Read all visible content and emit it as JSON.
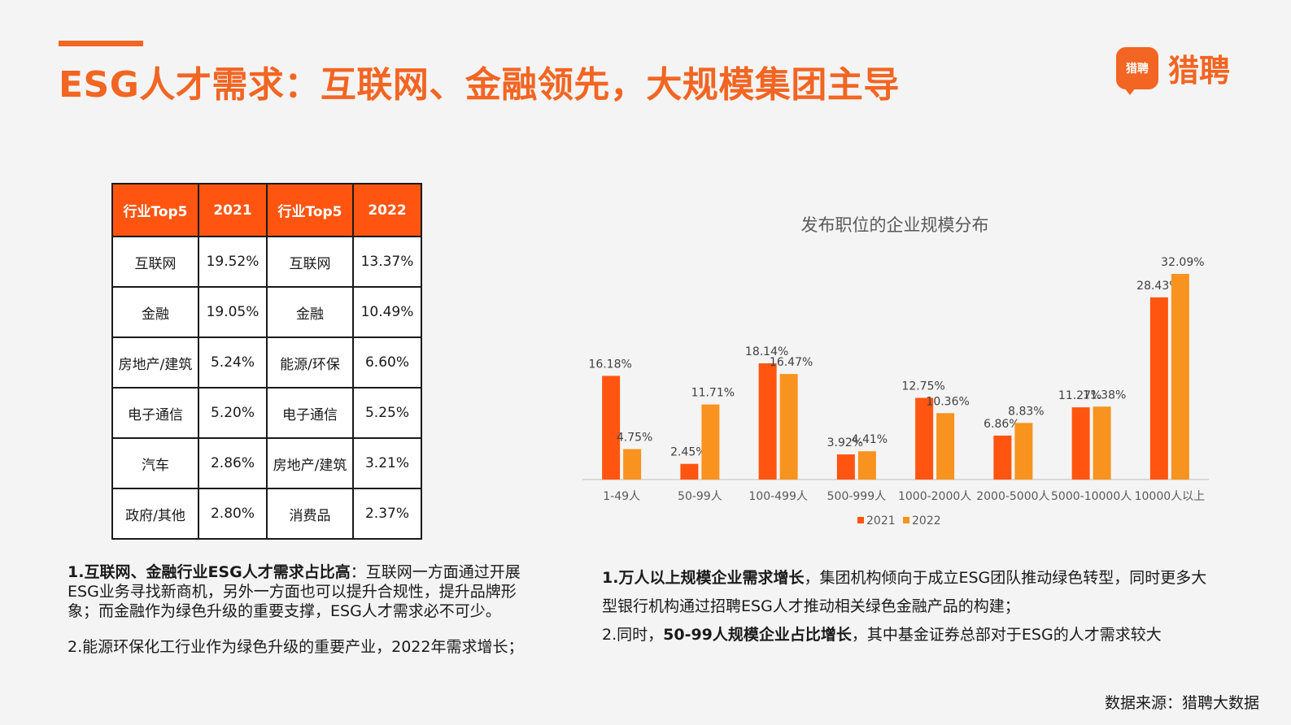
{
  "header": {
    "title": "ESG人才需求：互联网、金融领先，大规模集团主导",
    "logo_badge": "猎聘",
    "logo_text": "猎聘"
  },
  "table": {
    "headers": [
      "行业Top5",
      "2021",
      "行业Top5",
      "2022"
    ],
    "rows": [
      [
        "互联网",
        "19.52%",
        "互联网",
        "13.37%"
      ],
      [
        "金融",
        "19.05%",
        "金融",
        "10.49%"
      ],
      [
        "房地产/建筑",
        "5.24%",
        "能源/环保",
        "6.60%"
      ],
      [
        "电子通信",
        "5.20%",
        "电子通信",
        "5.25%"
      ],
      [
        "汽车",
        "2.86%",
        "房地产/建筑",
        "3.21%"
      ],
      [
        "政府/其他",
        "2.80%",
        "消费品",
        "2.37%"
      ]
    ]
  },
  "left_notes": {
    "p1_bold": "1.互联网、金融行业ESG人才需求占比高",
    "p1_rest": "：互联网一方面通过开展ESG业务寻找新商机，另外一方面也可以提升合规性，提升品牌形象；而金融作为绿色升级的重要支撑，ESG人才需求必不可少。",
    "p2": "2.能源环保化工行业作为绿色升级的重要产业，2022年需求增长；"
  },
  "right_notes": {
    "p1_bold": "1.万人以上规模企业需求增长",
    "p1_rest": "，集团机构倾向于成立ESG团队推动绿色转型，同时更多大型银行机构通过招聘ESG人才推动相关绿色金融产品的构建；",
    "p2_pre": "2.同时，",
    "p2_bold": "50-99人规模企业占比增长",
    "p2_rest": "，其中基金证券总部对于ESG的人才需求较大"
  },
  "source": "数据来源：猎聘大数据",
  "colors": {
    "accent": "#f26522",
    "series_2021": "#ff5511",
    "series_2022": "#f7931e"
  },
  "chart_data": {
    "type": "bar",
    "title": "发布职位的企业规模分布",
    "categories": [
      "1-49人",
      "50-99人",
      "100-499人",
      "500-999人",
      "1000-2000人",
      "2000-5000人",
      "5000-10000人",
      "10000人以上"
    ],
    "series": [
      {
        "name": "2021",
        "values": [
          16.18,
          2.45,
          18.14,
          3.92,
          12.75,
          6.86,
          11.27,
          28.43
        ],
        "labels": [
          "16.18%",
          "2.45%",
          "18.14%",
          "3.92%",
          "12.75%",
          "6.86%",
          "11.27%",
          "28.43%"
        ]
      },
      {
        "name": "2022",
        "values": [
          4.75,
          11.71,
          16.47,
          4.41,
          10.36,
          8.83,
          11.38,
          32.09
        ],
        "labels": [
          "4.75%",
          "11.71%",
          "16.47%",
          "4.41%",
          "10.36%",
          "8.83%",
          "11.38%",
          "32.09%"
        ]
      }
    ],
    "ylim": [
      0,
      32.09
    ],
    "grid": false,
    "legend": "bottom-center"
  }
}
